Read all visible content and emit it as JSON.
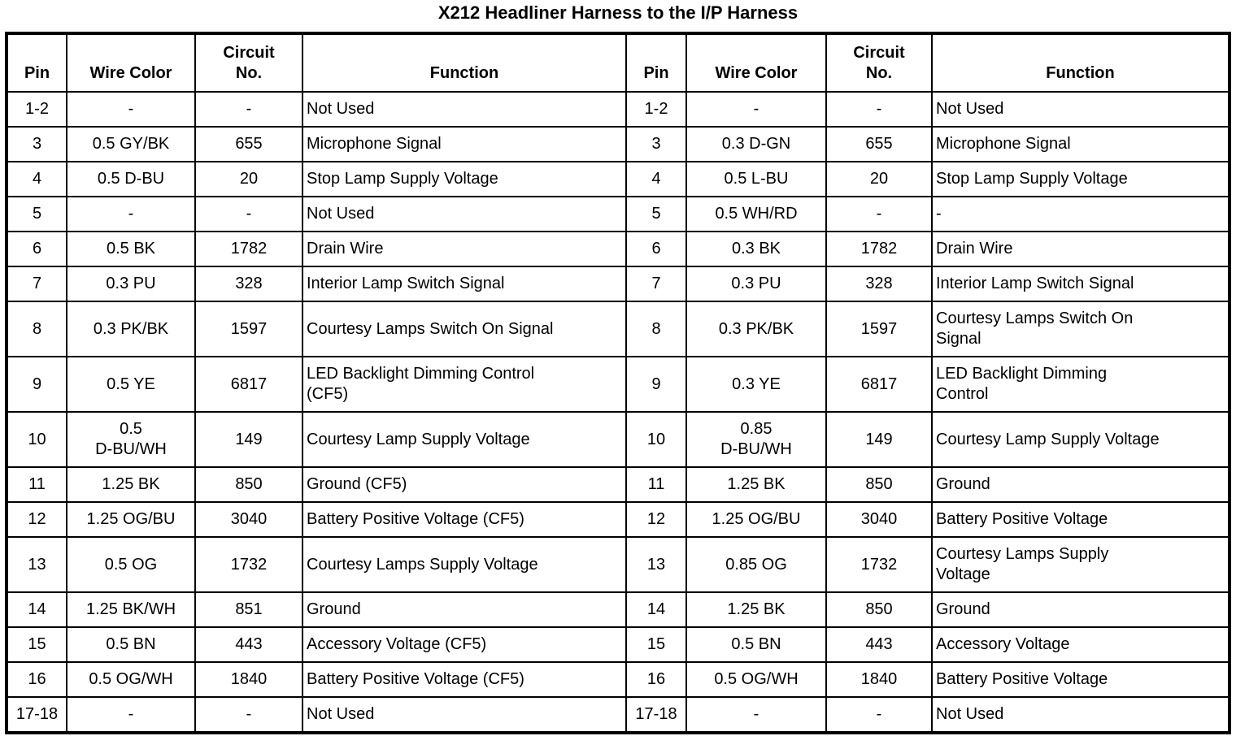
{
  "title": "X212 Headliner Harness to the I/P Harness",
  "table": {
    "columns": [
      "Pin",
      "Wire Color",
      "Circuit\nNo.",
      "Function"
    ],
    "rows": [
      {
        "left": {
          "pin": "1-2",
          "wire": "-",
          "circuit": "-",
          "function": "Not Used"
        },
        "right": {
          "pin": "1-2",
          "wire": "-",
          "circuit": "-",
          "function": "Not Used"
        }
      },
      {
        "left": {
          "pin": "3",
          "wire": "0.5 GY/BK",
          "circuit": "655",
          "function": "Microphone Signal"
        },
        "right": {
          "pin": "3",
          "wire": "0.3 D-GN",
          "circuit": "655",
          "function": "Microphone Signal"
        }
      },
      {
        "left": {
          "pin": "4",
          "wire": "0.5 D-BU",
          "circuit": "20",
          "function": "Stop Lamp Supply Voltage"
        },
        "right": {
          "pin": "4",
          "wire": "0.5 L-BU",
          "circuit": "20",
          "function": "Stop Lamp Supply Voltage"
        }
      },
      {
        "left": {
          "pin": "5",
          "wire": "-",
          "circuit": "-",
          "function": "Not Used"
        },
        "right": {
          "pin": "5",
          "wire": "0.5 WH/RD",
          "circuit": "-",
          "function": "-"
        }
      },
      {
        "left": {
          "pin": "6",
          "wire": "0.5 BK",
          "circuit": "1782",
          "function": "Drain Wire"
        },
        "right": {
          "pin": "6",
          "wire": "0.3 BK",
          "circuit": "1782",
          "function": "Drain Wire"
        }
      },
      {
        "left": {
          "pin": "7",
          "wire": "0.3 PU",
          "circuit": "328",
          "function": "Interior Lamp Switch Signal"
        },
        "right": {
          "pin": "7",
          "wire": "0.3 PU",
          "circuit": "328",
          "function": "Interior Lamp Switch Signal"
        }
      },
      {
        "left": {
          "pin": "8",
          "wire": "0.3 PK/BK",
          "circuit": "1597",
          "function": "Courtesy Lamps Switch On Signal"
        },
        "right": {
          "pin": "8",
          "wire": "0.3 PK/BK",
          "circuit": "1597",
          "function": "Courtesy Lamps Switch On\nSignal"
        }
      },
      {
        "left": {
          "pin": "9",
          "wire": "0.5 YE",
          "circuit": "6817",
          "function": "LED Backlight Dimming Control\n(CF5)"
        },
        "right": {
          "pin": "9",
          "wire": "0.3 YE",
          "circuit": "6817",
          "function": "LED Backlight Dimming\nControl"
        }
      },
      {
        "left": {
          "pin": "10",
          "wire": "0.5\nD-BU/WH",
          "circuit": "149",
          "function": "Courtesy Lamp Supply Voltage"
        },
        "right": {
          "pin": "10",
          "wire": "0.85\nD-BU/WH",
          "circuit": "149",
          "function": "Courtesy Lamp Supply Voltage"
        }
      },
      {
        "left": {
          "pin": "11",
          "wire": "1.25 BK",
          "circuit": "850",
          "function": "Ground (CF5)"
        },
        "right": {
          "pin": "11",
          "wire": "1.25 BK",
          "circuit": "850",
          "function": "Ground"
        }
      },
      {
        "left": {
          "pin": "12",
          "wire": "1.25 OG/BU",
          "circuit": "3040",
          "function": "Battery Positive Voltage (CF5)"
        },
        "right": {
          "pin": "12",
          "wire": "1.25 OG/BU",
          "circuit": "3040",
          "function": "Battery Positive Voltage"
        }
      },
      {
        "left": {
          "pin": "13",
          "wire": "0.5 OG",
          "circuit": "1732",
          "function": "Courtesy Lamps Supply Voltage"
        },
        "right": {
          "pin": "13",
          "wire": "0.85 OG",
          "circuit": "1732",
          "function": "Courtesy Lamps Supply\nVoltage"
        }
      },
      {
        "left": {
          "pin": "14",
          "wire": "1.25 BK/WH",
          "circuit": "851",
          "function": "Ground"
        },
        "right": {
          "pin": "14",
          "wire": "1.25 BK",
          "circuit": "850",
          "function": "Ground"
        }
      },
      {
        "left": {
          "pin": "15",
          "wire": "0.5 BN",
          "circuit": "443",
          "function": "Accessory Voltage (CF5)"
        },
        "right": {
          "pin": "15",
          "wire": "0.5 BN",
          "circuit": "443",
          "function": "Accessory Voltage"
        }
      },
      {
        "left": {
          "pin": "16",
          "wire": "0.5 OG/WH",
          "circuit": "1840",
          "function": "Battery Positive Voltage (CF5)"
        },
        "right": {
          "pin": "16",
          "wire": "0.5 OG/WH",
          "circuit": "1840",
          "function": "Battery Positive Voltage"
        }
      },
      {
        "left": {
          "pin": "17-18",
          "wire": "-",
          "circuit": "-",
          "function": "Not Used"
        },
        "right": {
          "pin": "17-18",
          "wire": "-",
          "circuit": "-",
          "function": "Not Used"
        }
      }
    ]
  }
}
